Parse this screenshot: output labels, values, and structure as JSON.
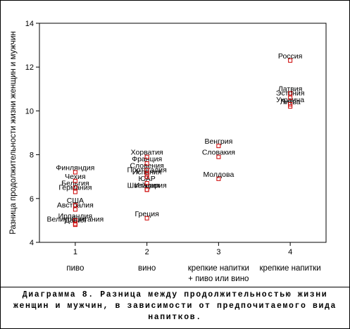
{
  "chart_data": {
    "type": "scatter",
    "title": "",
    "xlabel": "",
    "ylabel": "Разница продолжительности жизни женщин и мужчин",
    "xlim": [
      0.5,
      4.5
    ],
    "ylim": [
      4,
      14
    ],
    "x_ticks": [
      1,
      2,
      3,
      4
    ],
    "y_ticks": [
      4,
      6,
      8,
      10,
      12,
      14
    ],
    "category_labels": [
      {
        "x": 1,
        "lines": [
          "пиво"
        ]
      },
      {
        "x": 2,
        "lines": [
          "вино"
        ]
      },
      {
        "x": 3,
        "lines": [
          "крепкие напитки",
          "+ пиво или вино"
        ]
      },
      {
        "x": 4,
        "lines": [
          "крепкие напитки"
        ]
      }
    ],
    "marker_color": "#cc0000",
    "grid": false,
    "points": [
      {
        "x": 1,
        "y": 7.2,
        "label": "Финляндия"
      },
      {
        "x": 1,
        "y": 6.8,
        "label": "Чехия"
      },
      {
        "x": 1,
        "y": 6.5,
        "label": "Бельгия"
      },
      {
        "x": 1,
        "y": 6.3,
        "label": "Германия"
      },
      {
        "x": 1,
        "y": 5.7,
        "label": "США"
      },
      {
        "x": 1,
        "y": 5.5,
        "label": "Австралия"
      },
      {
        "x": 1,
        "y": 5.0,
        "label": "Ирландия"
      },
      {
        "x": 1,
        "y": 4.85,
        "label": "Великобритания"
      },
      {
        "x": 1,
        "y": 4.8,
        "label": "Дания"
      },
      {
        "x": 2,
        "y": 7.9,
        "label": "Хорватия"
      },
      {
        "x": 2,
        "y": 7.6,
        "label": "Франция"
      },
      {
        "x": 2,
        "y": 7.3,
        "label": "Словения"
      },
      {
        "x": 2,
        "y": 7.1,
        "label": "Португалия"
      },
      {
        "x": 2,
        "y": 7.0,
        "label": "Испания"
      },
      {
        "x": 2,
        "y": 6.7,
        "label": "ЮАР"
      },
      {
        "x": 2,
        "y": 6.4,
        "label": "Швейцария"
      },
      {
        "x": 2,
        "y": 6.4,
        "label": "Италия"
      },
      {
        "x": 2,
        "y": 5.1,
        "label": "Греция"
      },
      {
        "x": 3,
        "y": 8.4,
        "label": "Венгрия"
      },
      {
        "x": 3,
        "y": 7.9,
        "label": "Словакия"
      },
      {
        "x": 3,
        "y": 6.9,
        "label": "Молдова"
      },
      {
        "x": 4,
        "y": 12.3,
        "label": "Россия"
      },
      {
        "x": 4,
        "y": 10.8,
        "label": "Латвия"
      },
      {
        "x": 4,
        "y": 10.6,
        "label": "Эстония"
      },
      {
        "x": 4,
        "y": 10.3,
        "label": "Украина"
      },
      {
        "x": 4,
        "y": 10.2,
        "label": "Литва"
      }
    ]
  },
  "caption": "Диаграмма 8. Разница между продолжительностью жизни женщин и мужчин, в зависимости от предпочитаемого вида напитков."
}
